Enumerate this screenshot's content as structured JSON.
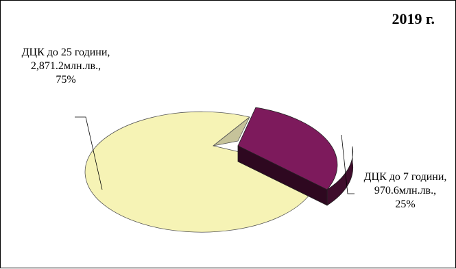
{
  "chart_data": {
    "type": "pie",
    "title": "2019 г.",
    "slices": [
      {
        "line1": "ДЦК до 25 години,",
        "line2": "2,871.2млн.лв.,",
        "line3": "75%",
        "value": 2871.2,
        "percent": 75,
        "color": "#f6f3b5",
        "side": "#d8d49a"
      },
      {
        "line1": "ДЦК до 7 години,",
        "line2": "970.6млн.лв.,",
        "line3": "25%",
        "value": 970.6,
        "percent": 25,
        "color": "#7d1a5c",
        "side": "#3f0d2c"
      }
    ]
  }
}
